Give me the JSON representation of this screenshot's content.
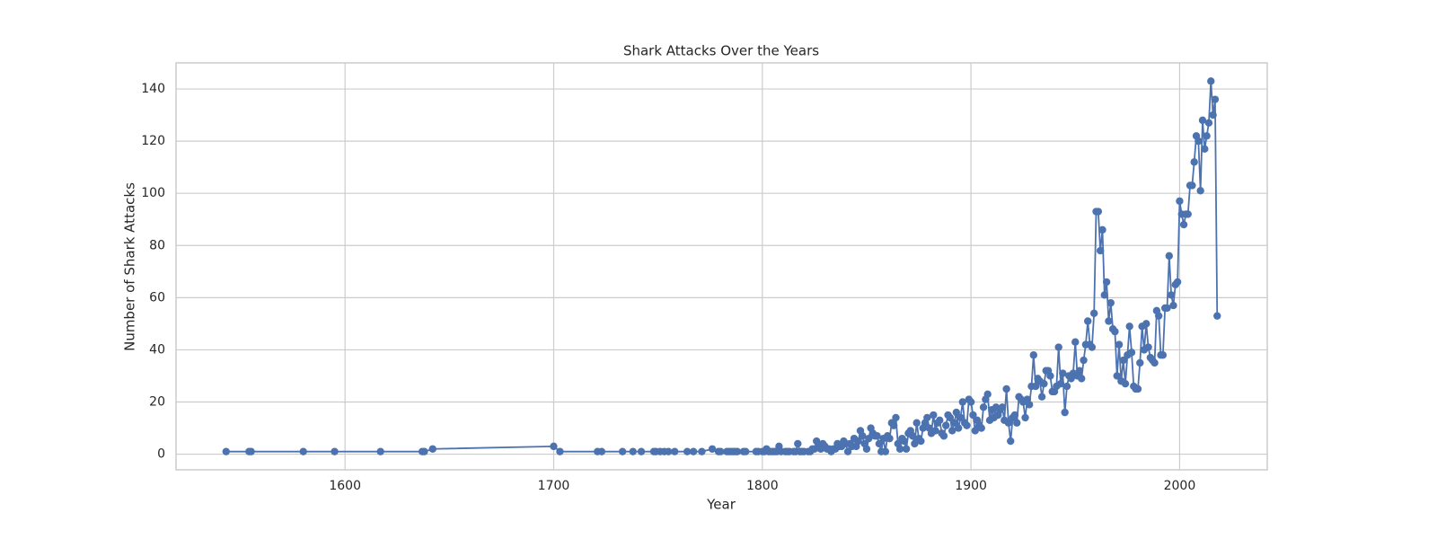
{
  "chart_data": {
    "type": "line",
    "title": "Shark Attacks Over the Years",
    "x_label": "Year",
    "y_label": "Number of Shark Attacks",
    "x": [
      1543,
      1554,
      1555,
      1580,
      1595,
      1617,
      1637,
      1638,
      1642,
      1700,
      1703,
      1721,
      1723,
      1733,
      1738,
      1742,
      1748,
      1749,
      1751,
      1753,
      1755,
      1758,
      1764,
      1767,
      1771,
      1776,
      1779,
      1780,
      1783,
      1784,
      1785,
      1786,
      1787,
      1788,
      1791,
      1792,
      1797,
      1798,
      1800,
      1801,
      1802,
      1803,
      1804,
      1805,
      1806,
      1807,
      1808,
      1809,
      1811,
      1812,
      1813,
      1815,
      1816,
      1817,
      1818,
      1819,
      1820,
      1822,
      1823,
      1824,
      1825,
      1826,
      1827,
      1828,
      1829,
      1830,
      1831,
      1832,
      1833,
      1834,
      1835,
      1836,
      1837,
      1838,
      1839,
      1840,
      1841,
      1842,
      1843,
      1844,
      1845,
      1846,
      1847,
      1848,
      1849,
      1850,
      1851,
      1852,
      1853,
      1854,
      1855,
      1856,
      1857,
      1858,
      1859,
      1860,
      1861,
      1862,
      1863,
      1864,
      1865,
      1866,
      1867,
      1868,
      1869,
      1870,
      1871,
      1872,
      1873,
      1874,
      1875,
      1876,
      1877,
      1878,
      1879,
      1880,
      1881,
      1882,
      1883,
      1884,
      1885,
      1886,
      1887,
      1888,
      1889,
      1890,
      1891,
      1892,
      1893,
      1894,
      1895,
      1896,
      1897,
      1898,
      1899,
      1900,
      1901,
      1902,
      1903,
      1904,
      1905,
      1906,
      1907,
      1908,
      1909,
      1910,
      1911,
      1912,
      1913,
      1914,
      1915,
      1916,
      1917,
      1918,
      1919,
      1920,
      1921,
      1922,
      1923,
      1924,
      1925,
      1926,
      1927,
      1928,
      1929,
      1930,
      1931,
      1932,
      1933,
      1934,
      1935,
      1936,
      1937,
      1938,
      1939,
      1940,
      1941,
      1942,
      1943,
      1944,
      1945,
      1946,
      1947,
      1948,
      1949,
      1950,
      1951,
      1952,
      1953,
      1954,
      1955,
      1956,
      1957,
      1958,
      1959,
      1960,
      1961,
      1962,
      1963,
      1964,
      1965,
      1966,
      1967,
      1968,
      1969,
      1970,
      1971,
      1972,
      1973,
      1974,
      1975,
      1976,
      1977,
      1978,
      1979,
      1980,
      1981,
      1982,
      1983,
      1984,
      1985,
      1986,
      1987,
      1988,
      1989,
      1990,
      1991,
      1992,
      1993,
      1994,
      1995,
      1996,
      1997,
      1998,
      1999,
      2000,
      2001,
      2002,
      2003,
      2004,
      2005,
      2006,
      2007,
      2008,
      2009,
      2010,
      2011,
      2012,
      2013,
      2014,
      2015,
      2016,
      2017,
      2018
    ],
    "series": [
      {
        "name": "Shark Attacks",
        "color": "#4c72b0",
        "values": [
          1,
          1,
          1,
          1,
          1,
          1,
          1,
          1,
          2,
          3,
          1,
          1,
          1,
          1,
          1,
          1,
          1,
          1,
          1,
          1,
          1,
          1,
          1,
          1,
          1,
          2,
          1,
          1,
          1,
          1,
          1,
          1,
          1,
          1,
          1,
          1,
          1,
          1,
          1,
          1,
          2,
          1,
          1,
          1,
          1,
          1,
          3,
          1,
          1,
          1,
          1,
          1,
          1,
          4,
          1,
          1,
          1,
          1,
          1,
          2,
          2,
          5,
          3,
          2,
          4,
          3,
          2,
          2,
          1,
          2,
          2,
          4,
          3,
          3,
          5,
          4,
          1,
          4,
          3,
          6,
          3,
          5,
          9,
          7,
          4,
          2,
          6,
          10,
          8,
          7,
          7,
          4,
          1,
          6,
          1,
          7,
          6,
          12,
          11,
          14,
          4,
          2,
          6,
          5,
          2,
          8,
          9,
          7,
          4,
          12,
          6,
          5,
          10,
          12,
          14,
          10,
          8,
          15,
          9,
          12,
          13,
          8,
          7,
          11,
          15,
          14,
          9,
          12,
          16,
          10,
          14,
          20,
          12,
          11,
          21,
          20,
          15,
          9,
          13,
          11,
          10,
          18,
          21,
          23,
          13,
          17,
          14,
          18,
          15,
          17,
          18,
          13,
          25,
          12,
          5,
          14,
          15,
          12,
          22,
          21,
          20,
          14,
          21,
          19,
          26,
          38,
          26,
          29,
          28,
          22,
          27,
          32,
          32,
          30,
          24,
          24,
          26,
          41,
          27,
          31,
          16,
          26,
          30,
          29,
          31,
          43,
          30,
          32,
          29,
          36,
          42,
          51,
          42,
          41,
          54,
          93,
          93,
          78,
          86,
          61,
          66,
          51,
          58,
          48,
          47,
          30,
          42,
          28,
          36,
          27,
          38,
          49,
          39,
          26,
          25,
          25,
          35,
          49,
          40,
          50,
          41,
          37,
          36,
          35,
          55,
          53,
          38,
          38,
          56,
          56,
          76,
          61,
          57,
          65,
          66,
          97,
          92,
          88,
          92,
          92,
          103,
          103,
          112,
          122,
          120,
          101,
          128,
          117,
          122,
          127,
          143,
          130,
          136,
          53
        ]
      }
    ],
    "xlim": [
      1519,
      2042
    ],
    "ylim": [
      -6,
      150
    ],
    "xticks": [
      1600,
      1700,
      1800,
      1900,
      2000
    ],
    "yticks": [
      0,
      20,
      40,
      60,
      80,
      100,
      120,
      140
    ],
    "grid": true
  }
}
